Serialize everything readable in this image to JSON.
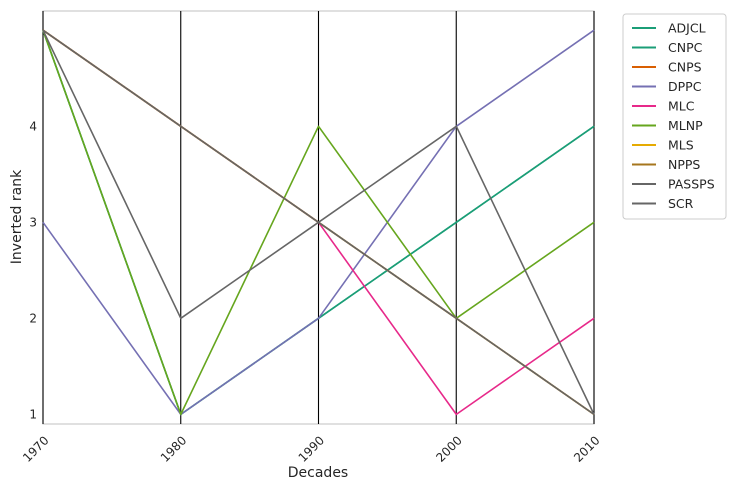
{
  "chart_data": {
    "type": "line",
    "title": "",
    "xlabel": "Decades",
    "ylabel": "Inverted rank",
    "x": [
      "1970",
      "1980",
      "1990",
      "2000",
      "2010"
    ],
    "yticks": [
      "1",
      "2",
      "3",
      "4"
    ],
    "ylim": [
      0.9,
      5.2
    ],
    "grid": false,
    "legend_position": "outside-top-right",
    "series": [
      {
        "name": "ADJCL",
        "color": "#1b9e77",
        "values": [
          5,
          1,
          2,
          3,
          4
        ]
      },
      {
        "name": "CNPC",
        "color": "#1b9e77",
        "values": [
          5,
          1,
          2,
          3,
          4
        ]
      },
      {
        "name": "CNPS",
        "color": "#d95f02",
        "values": [
          5,
          4,
          3,
          2,
          1
        ]
      },
      {
        "name": "DPPC",
        "color": "#7570b3",
        "values": [
          3,
          1,
          2,
          4,
          5
        ]
      },
      {
        "name": "MLC",
        "color": "#e7298a",
        "values": [
          5,
          4,
          3,
          1,
          2
        ]
      },
      {
        "name": "MLNP",
        "color": "#66a61e",
        "values": [
          5,
          1,
          4,
          2,
          3
        ]
      },
      {
        "name": "MLS",
        "color": "#e6ab02",
        "values": [
          5,
          4,
          3,
          2,
          1
        ]
      },
      {
        "name": "NPPS",
        "color": "#a6761d",
        "values": [
          5,
          4,
          3,
          2,
          1
        ]
      },
      {
        "name": "PASSPS",
        "color": "#666666",
        "values": [
          5,
          4,
          3,
          2,
          1
        ]
      },
      {
        "name": "SCR",
        "color": "#666666",
        "values": [
          5,
          2,
          3,
          4,
          1
        ]
      }
    ]
  }
}
